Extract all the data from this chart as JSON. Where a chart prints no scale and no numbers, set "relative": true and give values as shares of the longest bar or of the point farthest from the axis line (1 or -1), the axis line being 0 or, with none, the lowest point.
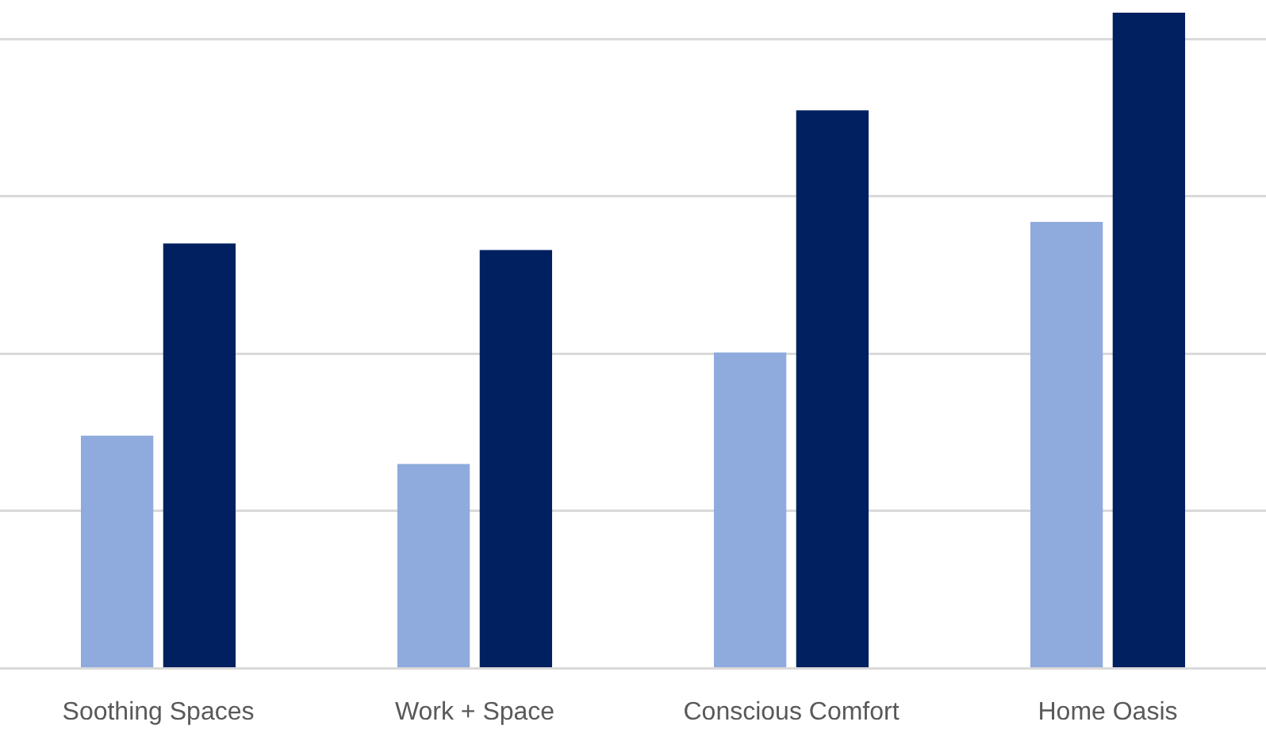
{
  "chart_data": {
    "type": "bar",
    "relative": true,
    "categories": [
      "Soothing Spaces",
      "Work + Space",
      "Conscious Comfort",
      "Home Oasis"
    ],
    "series": [
      {
        "color": "#8faadc",
        "values": [
          0.355,
          0.312,
          0.482,
          0.681
        ]
      },
      {
        "color": "#002060",
        "values": [
          0.648,
          0.638,
          0.851,
          1
        ]
      }
    ],
    "grid": "y",
    "legend": false
  }
}
